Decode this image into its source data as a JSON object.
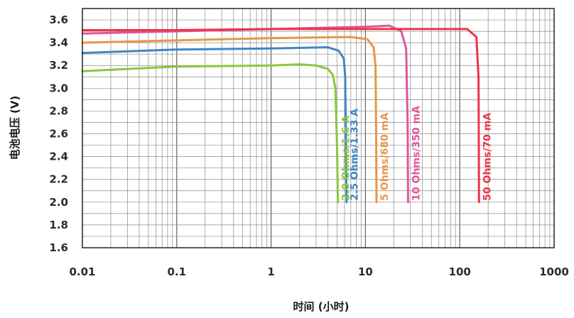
{
  "chart_data": {
    "type": "line",
    "title": "",
    "xlabel": "时间 (小时)",
    "ylabel": "电池电压 (V)",
    "x_scale": "log",
    "xlim": [
      0.01,
      1000
    ],
    "ylim": [
      1.6,
      3.7
    ],
    "x_ticks": [
      "0.01",
      "0.1",
      "1",
      "10",
      "100",
      "1000"
    ],
    "y_ticks": [
      "1.6",
      "1.8",
      "2.0",
      "2.2",
      "2.4",
      "2.6",
      "2.8",
      "3.0",
      "3.2",
      "3.4",
      "3.6"
    ],
    "grid": true,
    "series": [
      {
        "name": "2.0 Ohms/1.6 A",
        "color": "#8cc63f",
        "x": [
          0.01,
          0.1,
          1,
          2,
          3,
          4,
          4.5,
          4.8,
          5,
          5.1
        ],
        "y": [
          3.15,
          3.19,
          3.2,
          3.21,
          3.2,
          3.17,
          3.12,
          3.0,
          2.5,
          2.0
        ]
      },
      {
        "name": "2.5 Ohms/1.33 A",
        "color": "#3f86c4",
        "x": [
          0.01,
          0.1,
          1,
          4,
          5.2,
          5.9,
          6.1,
          6.2,
          6.3
        ],
        "y": [
          3.31,
          3.34,
          3.35,
          3.36,
          3.33,
          3.26,
          3.1,
          2.6,
          2.0
        ]
      },
      {
        "name": "5 Ohms/680 mA",
        "color": "#e9954a",
        "x": [
          0.01,
          0.1,
          1,
          7,
          10.5,
          12.2,
          12.8,
          13,
          13.1
        ],
        "y": [
          3.4,
          3.42,
          3.44,
          3.45,
          3.43,
          3.36,
          3.2,
          2.6,
          2.0
        ]
      },
      {
        "name": "10 Ohms/350 mA",
        "color": "#e0559a",
        "x": [
          0.01,
          0.1,
          1,
          10,
          18,
          24,
          27,
          28,
          28.3
        ],
        "y": [
          3.48,
          3.5,
          3.52,
          3.54,
          3.55,
          3.5,
          3.35,
          2.7,
          2.0
        ]
      },
      {
        "name": "50 Ohms/70 mA",
        "color": "#ee3348",
        "x": [
          0.01,
          0.1,
          1,
          10,
          50,
          120,
          150,
          158,
          160
        ],
        "y": [
          3.51,
          3.51,
          3.52,
          3.52,
          3.52,
          3.52,
          3.45,
          3.1,
          2.0
        ]
      }
    ]
  }
}
